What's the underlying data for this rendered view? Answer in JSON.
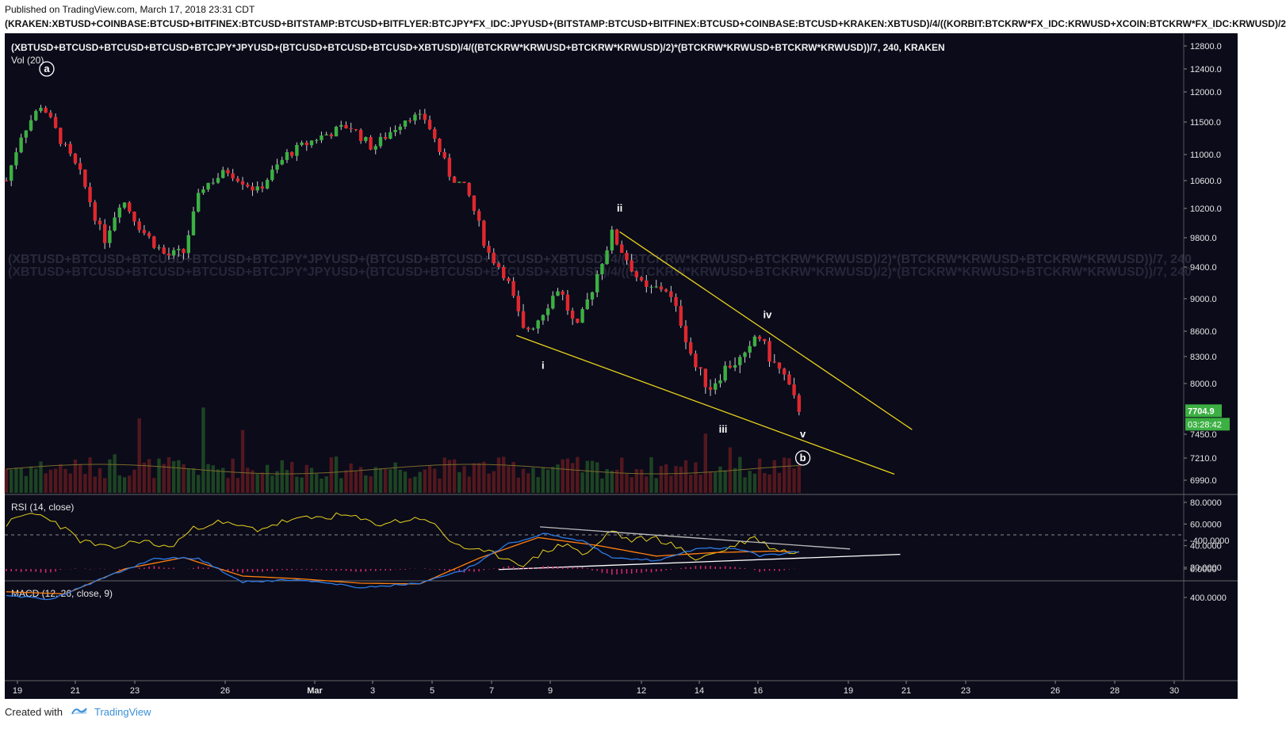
{
  "header": {
    "published": "Published on TradingView.com, March 17, 2018 23:31 CDT",
    "full_title": "(KRAKEN:XBTUSD+COINBASE:BTCUSD+BITFINEX:BTCUSD+BITSTAMP:BTCUSD+BITFLYER:BTCJPY*FX_IDC:JPYUSD+(BITSTAMP:BTCUSD+BITFINEX:BTCUSD+COINBASE:BTCUSD+KRAKEN:XBTUSD)/4/((KORBIT:BTCKRW*FX_IDC:KRWUSD+XCOIN:BTCKRW*FX_IDC:KRWUSD)/2"
  },
  "footer": {
    "created_with": "Created with",
    "brand": "TradingView"
  },
  "colors": {
    "background": "#0b0b1a",
    "up": "#3cb043",
    "down": "#e0282e",
    "wedge": "#e8d21a",
    "rsi": "#e8d21a",
    "macd": "#2c7be5",
    "signal": "#ff7f0e",
    "hist": "#d82a6b",
    "trend_white": "#ffffff",
    "price_badge": "#3cb043"
  },
  "chart_data": [
    {
      "type": "candlestick",
      "title": "(XBTUSD+BTCUSD+BTCUSD+BTCUSD+BTCJPY*JPYUSD+(BTCUSD+BTCUSD+BTCUSD+XBTUSD)/4/((BTCKRW*KRWUSD+BTCKRW*KRWUSD)/2)*(BTCKRW*KRWUSD+BTCKRW*KRWUSD))/7, 240, KRAKEN",
      "volume_label": "Vol (20)",
      "watermark": "(XBTUSD+BTCUSD+BTCUSD+BTCUSD+BTCJPY*JPYUSD+(BTCUSD+BTCUSD+BTCUSD+XBTUSD)/4/((BTCKRW*KRWUSD+BTCKRW*KRWUSD)/2)*(BTCKRW*KRWUSD+BTCKRW*KRWUSD))/7, 240",
      "x_ticks": [
        "19",
        "21",
        "23",
        "26",
        "Mar",
        "3",
        "5",
        "7",
        "9",
        "12",
        "14",
        "16",
        "19",
        "21",
        "23",
        "26",
        "28",
        "30"
      ],
      "y_ticks": [
        12800,
        12400,
        12000,
        11500,
        11000,
        10600,
        10200,
        9800,
        9400,
        9000,
        8600,
        8300,
        8000,
        7450,
        7210,
        6990
      ],
      "y_tick_labels": [
        "12800.0",
        "12400.0",
        "12000.0",
        "11500.0",
        "11000.0",
        "10600.0",
        "10200.0",
        "9800.0",
        "9400.0",
        "9000.0",
        "8600.0",
        "8300.0",
        "8000.0",
        "7450.0",
        "7210.0",
        "6990.0"
      ],
      "last_price": "7704.9",
      "countdown": "03:28:42",
      "waypoints": [
        {
          "day": 0,
          "price": 10600
        },
        {
          "day": 0.5,
          "price": 11300
        },
        {
          "day": 1.2,
          "price": 11800
        },
        {
          "day": 1.8,
          "price": 11250
        },
        {
          "day": 2.5,
          "price": 10700
        },
        {
          "day": 3.3,
          "price": 9750
        },
        {
          "day": 3.9,
          "price": 10350
        },
        {
          "day": 4.6,
          "price": 9900
        },
        {
          "day": 5.4,
          "price": 9550
        },
        {
          "day": 6.0,
          "price": 9600
        },
        {
          "day": 6.6,
          "price": 10500
        },
        {
          "day": 7.5,
          "price": 10750
        },
        {
          "day": 8.5,
          "price": 10450
        },
        {
          "day": 9.5,
          "price": 11000
        },
        {
          "day": 10.5,
          "price": 11250
        },
        {
          "day": 11.6,
          "price": 11450
        },
        {
          "day": 12.4,
          "price": 11100
        },
        {
          "day": 13.6,
          "price": 11600
        },
        {
          "day": 14.2,
          "price": 11550
        },
        {
          "day": 15.0,
          "price": 10700
        },
        {
          "day": 15.6,
          "price": 10450
        },
        {
          "day": 16.3,
          "price": 9600
        },
        {
          "day": 16.9,
          "price": 9300
        },
        {
          "day": 17.5,
          "price": 8600
        },
        {
          "day": 17.9,
          "price": 8700
        },
        {
          "day": 18.7,
          "price": 9150
        },
        {
          "day": 19.3,
          "price": 8600
        },
        {
          "day": 19.8,
          "price": 9100
        },
        {
          "day": 20.5,
          "price": 9850
        },
        {
          "day": 20.8,
          "price": 9650
        },
        {
          "day": 21.6,
          "price": 9100
        },
        {
          "day": 22.3,
          "price": 9150
        },
        {
          "day": 22.8,
          "price": 8750
        },
        {
          "day": 23.3,
          "price": 8200
        },
        {
          "day": 23.8,
          "price": 7950
        },
        {
          "day": 24.4,
          "price": 8200
        },
        {
          "day": 25.1,
          "price": 8300
        },
        {
          "day": 25.4,
          "price": 8600
        },
        {
          "day": 25.9,
          "price": 8250
        },
        {
          "day": 26.3,
          "price": 8100
        },
        {
          "day": 26.6,
          "price": 7850
        },
        {
          "day": 26.9,
          "price": 7700
        }
      ],
      "wave_labels": [
        {
          "text": "a",
          "circled": true,
          "day": 1.1,
          "price": 12400
        },
        {
          "text": "i",
          "day": 17.9,
          "price": 8200
        },
        {
          "text": "ii",
          "day": 20.5,
          "price": 10200
        },
        {
          "text": "iii",
          "day": 24.0,
          "price": 7500
        },
        {
          "text": "iv",
          "day": 25.5,
          "price": 8800
        },
        {
          "text": "v",
          "day": 26.7,
          "price": 7450
        },
        {
          "text": "b",
          "circled": true,
          "day": 26.7,
          "price": 7210
        }
      ],
      "trendlines": [
        {
          "name": "wedge-lower",
          "from": {
            "day": 17.0,
            "price": 8550
          },
          "to": {
            "day": 29.8,
            "price": 7050
          }
        },
        {
          "name": "wedge-upper",
          "from": {
            "day": 20.5,
            "price": 9880
          },
          "to": {
            "day": 30.4,
            "price": 7500
          }
        }
      ]
    },
    {
      "type": "line",
      "title": "RSI (14, close)",
      "y_ticks": [
        80,
        60,
        40,
        20
      ],
      "y_tick_labels": [
        "80.0000",
        "60.0000",
        "40.0000",
        "20.0000"
      ],
      "midline": 50,
      "waypoints": [
        {
          "day": 0,
          "value": 60
        },
        {
          "day": 0.8,
          "value": 70
        },
        {
          "day": 1.5,
          "value": 65
        },
        {
          "day": 2.5,
          "value": 45
        },
        {
          "day": 3.5,
          "value": 37
        },
        {
          "day": 4.5,
          "value": 45
        },
        {
          "day": 5.5,
          "value": 38
        },
        {
          "day": 6.3,
          "value": 55
        },
        {
          "day": 7.0,
          "value": 62
        },
        {
          "day": 8.5,
          "value": 55
        },
        {
          "day": 9.5,
          "value": 63
        },
        {
          "day": 10.5,
          "value": 66
        },
        {
          "day": 11.5,
          "value": 68
        },
        {
          "day": 12.5,
          "value": 60
        },
        {
          "day": 14.2,
          "value": 66
        },
        {
          "day": 15.0,
          "value": 45
        },
        {
          "day": 15.8,
          "value": 35
        },
        {
          "day": 16.4,
          "value": 33
        },
        {
          "day": 17.0,
          "value": 28
        },
        {
          "day": 17.6,
          "value": 22
        },
        {
          "day": 18.2,
          "value": 35
        },
        {
          "day": 19.0,
          "value": 42
        },
        {
          "day": 19.6,
          "value": 30
        },
        {
          "day": 20.5,
          "value": 55
        },
        {
          "day": 21.0,
          "value": 45
        },
        {
          "day": 22.0,
          "value": 47
        },
        {
          "day": 22.6,
          "value": 40
        },
        {
          "day": 23.3,
          "value": 28
        },
        {
          "day": 24.0,
          "value": 33
        },
        {
          "day": 24.8,
          "value": 42
        },
        {
          "day": 25.3,
          "value": 48
        },
        {
          "day": 25.9,
          "value": 38
        },
        {
          "day": 26.5,
          "value": 34
        },
        {
          "day": 26.9,
          "value": 33
        }
      ],
      "trendline": {
        "from": {
          "day": 16.4,
          "value": 18
        },
        "to": {
          "day": 30.0,
          "value": 32
        }
      }
    },
    {
      "type": "line",
      "title": "MACD (12, 26, close, 9)",
      "y_ticks": [
        400,
        0,
        -400
      ],
      "y_tick_labels": [
        "400.0000",
        "0.0000",
        "-400.0000"
      ],
      "series": [
        {
          "key": "macd",
          "waypoints": [
            {
              "day": 0,
              "value": 380
            },
            {
              "day": 1.5,
              "value": 420
            },
            {
              "day": 3.0,
              "value": 180
            },
            {
              "day": 5.0,
              "value": -150
            },
            {
              "day": 6.5,
              "value": -150
            },
            {
              "day": 8.0,
              "value": 180
            },
            {
              "day": 10.0,
              "value": 150
            },
            {
              "day": 12.0,
              "value": 260
            },
            {
              "day": 14.0,
              "value": 200
            },
            {
              "day": 15.5,
              "value": 20
            },
            {
              "day": 17.0,
              "value": -350
            },
            {
              "day": 18.2,
              "value": -500
            },
            {
              "day": 19.5,
              "value": -400
            },
            {
              "day": 20.5,
              "value": -150
            },
            {
              "day": 22.0,
              "value": -120
            },
            {
              "day": 23.5,
              "value": -300
            },
            {
              "day": 24.8,
              "value": -280
            },
            {
              "day": 25.5,
              "value": -180
            },
            {
              "day": 26.9,
              "value": -240
            }
          ]
        },
        {
          "key": "signal",
          "waypoints": [
            {
              "day": 0,
              "value": 320
            },
            {
              "day": 2.0,
              "value": 350
            },
            {
              "day": 4.0,
              "value": 0
            },
            {
              "day": 6.0,
              "value": -160
            },
            {
              "day": 8.0,
              "value": 100
            },
            {
              "day": 10.0,
              "value": 140
            },
            {
              "day": 12.0,
              "value": 200
            },
            {
              "day": 14.0,
              "value": 210
            },
            {
              "day": 16.0,
              "value": -150
            },
            {
              "day": 18.0,
              "value": -440
            },
            {
              "day": 20.0,
              "value": -330
            },
            {
              "day": 22.0,
              "value": -180
            },
            {
              "day": 24.0,
              "value": -230
            },
            {
              "day": 26.0,
              "value": -250
            },
            {
              "day": 26.9,
              "value": -235
            }
          ]
        }
      ],
      "trendline": {
        "from": {
          "day": 17.8,
          "value": -590
        },
        "to": {
          "day": 28.3,
          "value": -280
        }
      }
    }
  ]
}
